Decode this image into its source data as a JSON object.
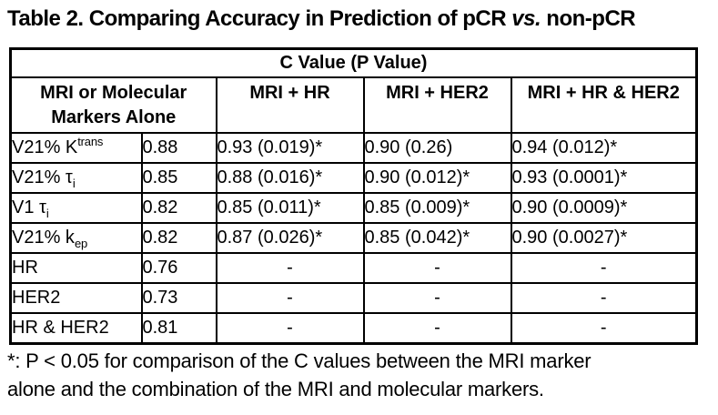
{
  "colors": {
    "background": "#ffffff",
    "text": "#000000",
    "border": "#000000"
  },
  "title": {
    "before_italic": "Table 2.  Comparing Accuracy in Prediction of pCR ",
    "italic": "vs.",
    "after_italic": " non-pCR"
  },
  "table": {
    "span_header": "C Value (P Value)",
    "alone_header": "MRI or Molecular Markers Alone",
    "combo_headers": [
      "MRI + HR",
      "MRI + HER2",
      "MRI + HR & HER2"
    ],
    "rows": [
      {
        "marker": {
          "base": "V21% K",
          "script": "trans",
          "script_pos": "sup"
        },
        "alone": "0.88",
        "values": [
          "0.93 (0.019)*",
          "0.90 (0.26)",
          "0.94 (0.012)*"
        ]
      },
      {
        "marker": {
          "base": "V21% τ",
          "script": "i",
          "script_pos": "sub"
        },
        "alone": "0.85",
        "values": [
          "0.88 (0.016)*",
          "0.90 (0.012)*",
          "0.93 (0.0001)*"
        ]
      },
      {
        "marker": {
          "base": "V1 τ",
          "script": "i",
          "script_pos": "sub"
        },
        "alone": "0.82",
        "values": [
          "0.85 (0.011)*",
          "0.85 (0.009)*",
          "0.90 (0.0009)*"
        ]
      },
      {
        "marker": {
          "base": "V21% k",
          "script": "ep",
          "script_pos": "sub"
        },
        "alone": "0.82",
        "values": [
          "0.87 (0.026)*",
          "0.85 (0.042)*",
          "0.90 (0.0027)*"
        ]
      },
      {
        "marker": {
          "base": "HR",
          "script": "",
          "script_pos": ""
        },
        "alone": "0.76",
        "values": [
          "-",
          "-",
          "-"
        ]
      },
      {
        "marker": {
          "base": "HER2",
          "script": "",
          "script_pos": ""
        },
        "alone": "0.73",
        "values": [
          "-",
          "-",
          "-"
        ]
      },
      {
        "marker": {
          "base": "HR & HER2",
          "script": "",
          "script_pos": ""
        },
        "alone": "0.81",
        "values": [
          "-",
          "-",
          "-"
        ]
      }
    ]
  },
  "footnote": {
    "line1": "*: P < 0.05 for comparison of the C values between the MRI marker",
    "line2": "alone and the combination of the MRI and molecular markers."
  }
}
